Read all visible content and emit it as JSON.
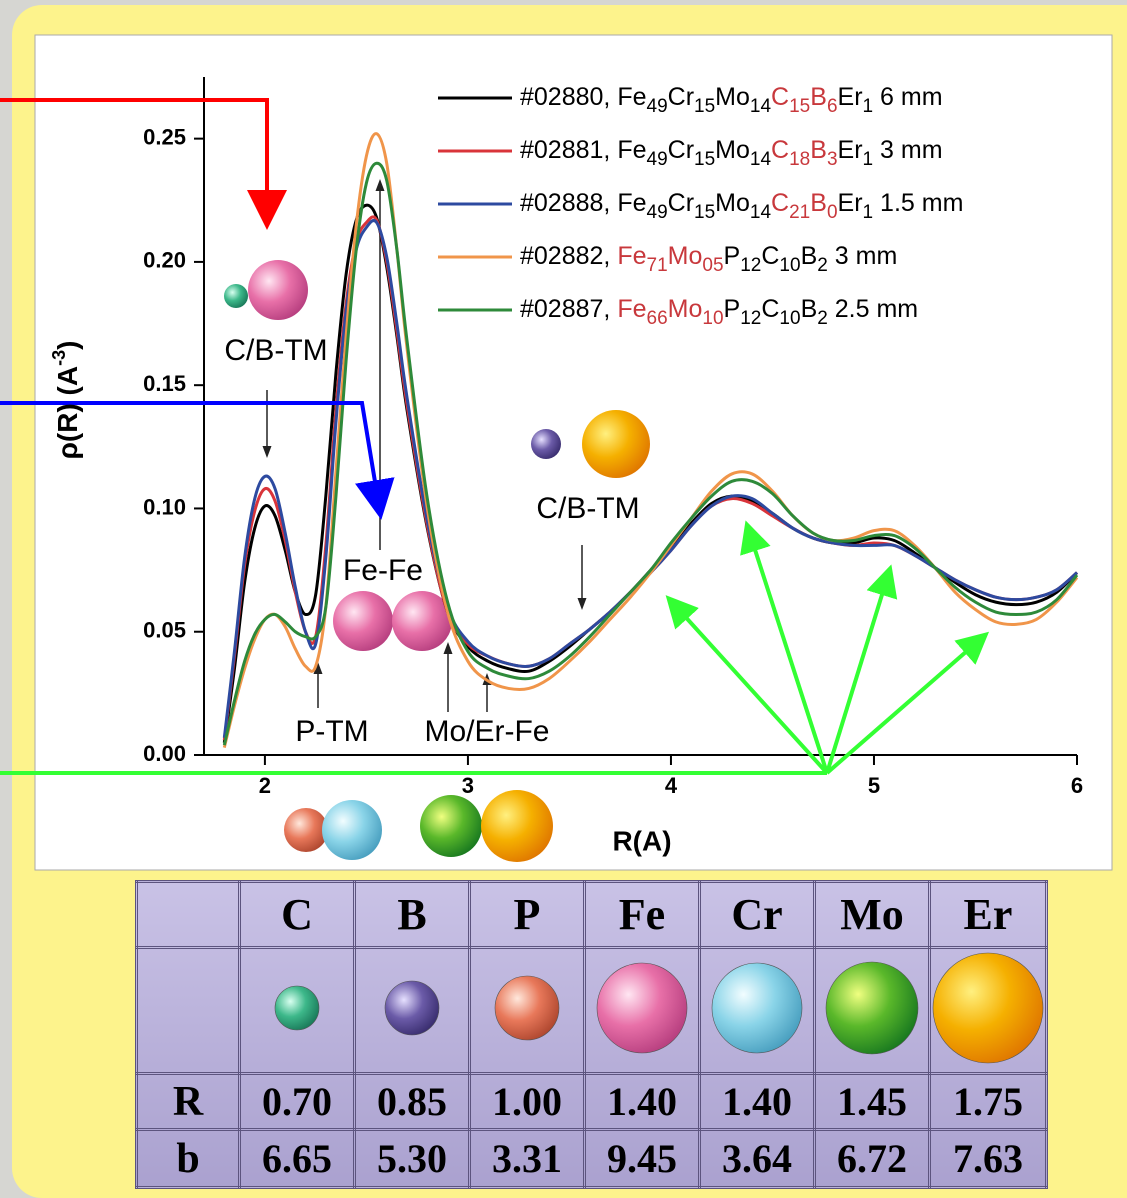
{
  "chart_data": {
    "type": "line",
    "xlabel": "R(A)",
    "ylabel": [
      {
        "text": "ρ(R) (A"
      },
      {
        "text": "-3",
        "sup": true
      },
      {
        "text": ")"
      }
    ],
    "x": [
      1.8,
      1.85,
      1.9,
      1.95,
      2.0,
      2.05,
      2.1,
      2.15,
      2.2,
      2.25,
      2.3,
      2.35,
      2.4,
      2.45,
      2.5,
      2.55,
      2.6,
      2.65,
      2.7,
      2.8,
      2.9,
      3.0,
      3.1,
      3.2,
      3.3,
      3.4,
      3.5,
      3.6,
      3.7,
      3.8,
      3.9,
      4.0,
      4.1,
      4.2,
      4.3,
      4.4,
      4.5,
      4.6,
      4.7,
      4.8,
      4.9,
      5.0,
      5.1,
      5.2,
      5.3,
      5.4,
      5.5,
      5.6,
      5.7,
      5.8,
      5.9,
      6.0
    ],
    "xlim": [
      1.7,
      6
    ],
    "xticks": [
      2,
      3,
      4,
      5,
      6
    ],
    "ylim": [
      0,
      0.275
    ],
    "yticks": [
      {
        "value": 0,
        "label": "0.00"
      },
      0.05,
      {
        "value": 0.1,
        "label": "0.10"
      },
      0.15,
      {
        "value": 0.2,
        "label": "0.20"
      },
      0.25
    ],
    "series": [
      {
        "name": [
          {
            "text": "#02880, Fe"
          },
          {
            "text": "49",
            "sub": true
          },
          {
            "text": "Cr"
          },
          {
            "text": "15",
            "sub": true
          },
          {
            "text": "Mo"
          },
          {
            "text": "14",
            "sub": true
          },
          {
            "text": "C",
            "color": "#c8383c"
          },
          {
            "text": "15",
            "sub": true,
            "color": "#c8383c"
          },
          {
            "text": "B",
            "color": "#c8383c"
          },
          {
            "text": "6",
            "sub": true,
            "color": "#c8383c"
          },
          {
            "text": "Er"
          },
          {
            "text": "1",
            "sub": true
          },
          {
            "text": " 6 mm"
          }
        ],
        "color": "#000000",
        "values": [
          0.005,
          0.035,
          0.07,
          0.092,
          0.101,
          0.097,
          0.083,
          0.066,
          0.057,
          0.065,
          0.105,
          0.155,
          0.195,
          0.217,
          0.223,
          0.218,
          0.198,
          0.17,
          0.14,
          0.092,
          0.058,
          0.044,
          0.038,
          0.035,
          0.034,
          0.038,
          0.044,
          0.051,
          0.058,
          0.066,
          0.075,
          0.084,
          0.094,
          0.102,
          0.105,
          0.103,
          0.098,
          0.092,
          0.088,
          0.086,
          0.086,
          0.088,
          0.087,
          0.082,
          0.076,
          0.07,
          0.065,
          0.062,
          0.061,
          0.062,
          0.066,
          0.074
        ]
      },
      {
        "name": [
          {
            "text": "#02881, Fe"
          },
          {
            "text": "49",
            "sub": true
          },
          {
            "text": "Cr"
          },
          {
            "text": "15",
            "sub": true
          },
          {
            "text": "Mo"
          },
          {
            "text": "14",
            "sub": true
          },
          {
            "text": "C",
            "color": "#c8383c"
          },
          {
            "text": "18",
            "sub": true,
            "color": "#c8383c"
          },
          {
            "text": "B",
            "color": "#c8383c"
          },
          {
            "text": "3",
            "sub": true,
            "color": "#c8383c"
          },
          {
            "text": "Er"
          },
          {
            "text": "1",
            "sub": true
          },
          {
            "text": " 3 mm"
          }
        ],
        "color": "#d9343a",
        "values": [
          0.006,
          0.04,
          0.077,
          0.099,
          0.108,
          0.103,
          0.087,
          0.066,
          0.05,
          0.048,
          0.085,
          0.14,
          0.183,
          0.208,
          0.216,
          0.217,
          0.2,
          0.172,
          0.142,
          0.093,
          0.058,
          0.045,
          0.04,
          0.037,
          0.036,
          0.039,
          0.045,
          0.051,
          0.058,
          0.066,
          0.074,
          0.083,
          0.093,
          0.101,
          0.104,
          0.102,
          0.097,
          0.092,
          0.088,
          0.086,
          0.085,
          0.086,
          0.085,
          0.081,
          0.076,
          0.071,
          0.067,
          0.064,
          0.063,
          0.064,
          0.067,
          0.074
        ]
      },
      {
        "name": [
          {
            "text": "#02888, Fe"
          },
          {
            "text": "49",
            "sub": true
          },
          {
            "text": "Cr"
          },
          {
            "text": "15",
            "sub": true
          },
          {
            "text": "Mo"
          },
          {
            "text": "14",
            "sub": true
          },
          {
            "text": "C",
            "color": "#c8383c"
          },
          {
            "text": "21",
            "sub": true,
            "color": "#c8383c"
          },
          {
            "text": "B",
            "color": "#c8383c"
          },
          {
            "text": "0",
            "sub": true,
            "color": "#c8383c"
          },
          {
            "text": "Er"
          },
          {
            "text": "1",
            "sub": true
          },
          {
            "text": " 1.5 mm"
          }
        ],
        "color": "#2d4aa0",
        "values": [
          0.007,
          0.042,
          0.08,
          0.104,
          0.113,
          0.108,
          0.09,
          0.068,
          0.05,
          0.045,
          0.08,
          0.135,
          0.18,
          0.205,
          0.214,
          0.216,
          0.202,
          0.175,
          0.145,
          0.095,
          0.06,
          0.046,
          0.04,
          0.037,
          0.036,
          0.039,
          0.045,
          0.051,
          0.058,
          0.066,
          0.074,
          0.083,
          0.093,
          0.101,
          0.105,
          0.104,
          0.098,
          0.092,
          0.088,
          0.086,
          0.085,
          0.085,
          0.085,
          0.081,
          0.076,
          0.071,
          0.067,
          0.064,
          0.063,
          0.064,
          0.067,
          0.074
        ]
      },
      {
        "name": [
          {
            "text": "#02882, "
          },
          {
            "text": "Fe",
            "color": "#c8383c"
          },
          {
            "text": "71",
            "sub": true,
            "color": "#c8383c"
          },
          {
            "text": "Mo",
            "color": "#c8383c"
          },
          {
            "text": "05",
            "sub": true,
            "color": "#c8383c"
          },
          {
            "text": "P"
          },
          {
            "text": "12",
            "sub": true
          },
          {
            "text": "C"
          },
          {
            "text": "10",
            "sub": true
          },
          {
            "text": "B"
          },
          {
            "text": "2",
            "sub": true
          },
          {
            "text": " 3 mm"
          }
        ],
        "color": "#f0954a",
        "values": [
          0.003,
          0.02,
          0.035,
          0.047,
          0.055,
          0.057,
          0.052,
          0.043,
          0.036,
          0.036,
          0.06,
          0.115,
          0.17,
          0.215,
          0.243,
          0.252,
          0.24,
          0.205,
          0.165,
          0.1,
          0.058,
          0.038,
          0.03,
          0.027,
          0.027,
          0.031,
          0.038,
          0.046,
          0.055,
          0.064,
          0.074,
          0.085,
          0.096,
          0.107,
          0.114,
          0.114,
          0.107,
          0.097,
          0.09,
          0.087,
          0.088,
          0.091,
          0.091,
          0.085,
          0.076,
          0.066,
          0.059,
          0.054,
          0.053,
          0.055,
          0.062,
          0.072
        ]
      },
      {
        "name": [
          {
            "text": "#02887, "
          },
          {
            "text": "Fe",
            "color": "#c8383c"
          },
          {
            "text": "66",
            "sub": true,
            "color": "#c8383c"
          },
          {
            "text": "Mo",
            "color": "#c8383c"
          },
          {
            "text": "10",
            "sub": true,
            "color": "#c8383c"
          },
          {
            "text": "P"
          },
          {
            "text": "12",
            "sub": true
          },
          {
            "text": "C"
          },
          {
            "text": "10",
            "sub": true
          },
          {
            "text": "B"
          },
          {
            "text": "2",
            "sub": true
          },
          {
            "text": " 2.5 mm"
          }
        ],
        "color": "#2e8a3a",
        "values": [
          0.004,
          0.022,
          0.038,
          0.049,
          0.055,
          0.057,
          0.054,
          0.05,
          0.048,
          0.048,
          0.06,
          0.105,
          0.16,
          0.205,
          0.232,
          0.24,
          0.233,
          0.205,
          0.168,
          0.104,
          0.062,
          0.042,
          0.035,
          0.032,
          0.031,
          0.034,
          0.04,
          0.048,
          0.057,
          0.066,
          0.075,
          0.086,
          0.096,
          0.105,
          0.111,
          0.111,
          0.106,
          0.097,
          0.09,
          0.087,
          0.087,
          0.089,
          0.089,
          0.084,
          0.076,
          0.068,
          0.062,
          0.058,
          0.057,
          0.058,
          0.063,
          0.073
        ]
      }
    ],
    "annotations": [
      "C/B-TM",
      "Fe-Fe",
      "C/B-TM",
      "P-TM",
      "Mo/Er-Fe"
    ]
  },
  "table": {
    "columns": [
      "C",
      "B",
      "P",
      "Fe",
      "Cr",
      "Mo",
      "Er"
    ],
    "rows": [
      {
        "label": "R",
        "values": [
          "0.70",
          "0.85",
          "1.00",
          "1.40",
          "1.40",
          "1.45",
          "1.75"
        ]
      },
      {
        "label": "b",
        "values": [
          "6.65",
          "5.30",
          "3.31",
          "9.45",
          "3.64",
          "6.72",
          "7.63"
        ]
      }
    ]
  }
}
